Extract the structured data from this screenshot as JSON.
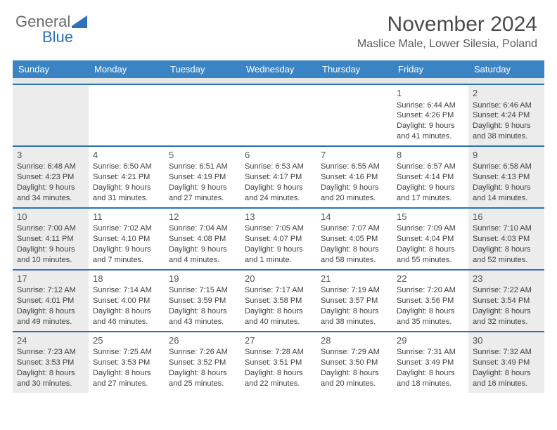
{
  "brand": {
    "text1": "General",
    "text2": "Blue"
  },
  "title": "November 2024",
  "location": "Maslice Male, Lower Silesia, Poland",
  "colors": {
    "header_bg": "#3b84c4",
    "header_text": "#ffffff",
    "rule": "#2a73b8",
    "shade": "#ececec",
    "spacer": "#e4e6e8",
    "text": "#3f3f3f",
    "logo_gray": "#6b6b6b",
    "logo_blue": "#2a73b8"
  },
  "day_names": [
    "Sunday",
    "Monday",
    "Tuesday",
    "Wednesday",
    "Thursday",
    "Friday",
    "Saturday"
  ],
  "weeks": [
    [
      {
        "blank": true,
        "shaded": true
      },
      {
        "blank": true
      },
      {
        "blank": true
      },
      {
        "blank": true
      },
      {
        "blank": true
      },
      {
        "day": "1",
        "sunrise": "Sunrise: 6:44 AM",
        "sunset": "Sunset: 4:26 PM",
        "daylight1": "Daylight: 9 hours",
        "daylight2": "and 41 minutes."
      },
      {
        "day": "2",
        "sunrise": "Sunrise: 6:46 AM",
        "sunset": "Sunset: 4:24 PM",
        "daylight1": "Daylight: 9 hours",
        "daylight2": "and 38 minutes.",
        "shaded": true
      }
    ],
    [
      {
        "day": "3",
        "sunrise": "Sunrise: 6:48 AM",
        "sunset": "Sunset: 4:23 PM",
        "daylight1": "Daylight: 9 hours",
        "daylight2": "and 34 minutes.",
        "shaded": true
      },
      {
        "day": "4",
        "sunrise": "Sunrise: 6:50 AM",
        "sunset": "Sunset: 4:21 PM",
        "daylight1": "Daylight: 9 hours",
        "daylight2": "and 31 minutes."
      },
      {
        "day": "5",
        "sunrise": "Sunrise: 6:51 AM",
        "sunset": "Sunset: 4:19 PM",
        "daylight1": "Daylight: 9 hours",
        "daylight2": "and 27 minutes."
      },
      {
        "day": "6",
        "sunrise": "Sunrise: 6:53 AM",
        "sunset": "Sunset: 4:17 PM",
        "daylight1": "Daylight: 9 hours",
        "daylight2": "and 24 minutes."
      },
      {
        "day": "7",
        "sunrise": "Sunrise: 6:55 AM",
        "sunset": "Sunset: 4:16 PM",
        "daylight1": "Daylight: 9 hours",
        "daylight2": "and 20 minutes."
      },
      {
        "day": "8",
        "sunrise": "Sunrise: 6:57 AM",
        "sunset": "Sunset: 4:14 PM",
        "daylight1": "Daylight: 9 hours",
        "daylight2": "and 17 minutes."
      },
      {
        "day": "9",
        "sunrise": "Sunrise: 6:58 AM",
        "sunset": "Sunset: 4:13 PM",
        "daylight1": "Daylight: 9 hours",
        "daylight2": "and 14 minutes.",
        "shaded": true
      }
    ],
    [
      {
        "day": "10",
        "sunrise": "Sunrise: 7:00 AM",
        "sunset": "Sunset: 4:11 PM",
        "daylight1": "Daylight: 9 hours",
        "daylight2": "and 10 minutes.",
        "shaded": true
      },
      {
        "day": "11",
        "sunrise": "Sunrise: 7:02 AM",
        "sunset": "Sunset: 4:10 PM",
        "daylight1": "Daylight: 9 hours",
        "daylight2": "and 7 minutes."
      },
      {
        "day": "12",
        "sunrise": "Sunrise: 7:04 AM",
        "sunset": "Sunset: 4:08 PM",
        "daylight1": "Daylight: 9 hours",
        "daylight2": "and 4 minutes."
      },
      {
        "day": "13",
        "sunrise": "Sunrise: 7:05 AM",
        "sunset": "Sunset: 4:07 PM",
        "daylight1": "Daylight: 9 hours",
        "daylight2": "and 1 minute."
      },
      {
        "day": "14",
        "sunrise": "Sunrise: 7:07 AM",
        "sunset": "Sunset: 4:05 PM",
        "daylight1": "Daylight: 8 hours",
        "daylight2": "and 58 minutes."
      },
      {
        "day": "15",
        "sunrise": "Sunrise: 7:09 AM",
        "sunset": "Sunset: 4:04 PM",
        "daylight1": "Daylight: 8 hours",
        "daylight2": "and 55 minutes."
      },
      {
        "day": "16",
        "sunrise": "Sunrise: 7:10 AM",
        "sunset": "Sunset: 4:03 PM",
        "daylight1": "Daylight: 8 hours",
        "daylight2": "and 52 minutes.",
        "shaded": true
      }
    ],
    [
      {
        "day": "17",
        "sunrise": "Sunrise: 7:12 AM",
        "sunset": "Sunset: 4:01 PM",
        "daylight1": "Daylight: 8 hours",
        "daylight2": "and 49 minutes.",
        "shaded": true
      },
      {
        "day": "18",
        "sunrise": "Sunrise: 7:14 AM",
        "sunset": "Sunset: 4:00 PM",
        "daylight1": "Daylight: 8 hours",
        "daylight2": "and 46 minutes."
      },
      {
        "day": "19",
        "sunrise": "Sunrise: 7:15 AM",
        "sunset": "Sunset: 3:59 PM",
        "daylight1": "Daylight: 8 hours",
        "daylight2": "and 43 minutes."
      },
      {
        "day": "20",
        "sunrise": "Sunrise: 7:17 AM",
        "sunset": "Sunset: 3:58 PM",
        "daylight1": "Daylight: 8 hours",
        "daylight2": "and 40 minutes."
      },
      {
        "day": "21",
        "sunrise": "Sunrise: 7:19 AM",
        "sunset": "Sunset: 3:57 PM",
        "daylight1": "Daylight: 8 hours",
        "daylight2": "and 38 minutes."
      },
      {
        "day": "22",
        "sunrise": "Sunrise: 7:20 AM",
        "sunset": "Sunset: 3:56 PM",
        "daylight1": "Daylight: 8 hours",
        "daylight2": "and 35 minutes."
      },
      {
        "day": "23",
        "sunrise": "Sunrise: 7:22 AM",
        "sunset": "Sunset: 3:54 PM",
        "daylight1": "Daylight: 8 hours",
        "daylight2": "and 32 minutes.",
        "shaded": true
      }
    ],
    [
      {
        "day": "24",
        "sunrise": "Sunrise: 7:23 AM",
        "sunset": "Sunset: 3:53 PM",
        "daylight1": "Daylight: 8 hours",
        "daylight2": "and 30 minutes.",
        "shaded": true
      },
      {
        "day": "25",
        "sunrise": "Sunrise: 7:25 AM",
        "sunset": "Sunset: 3:53 PM",
        "daylight1": "Daylight: 8 hours",
        "daylight2": "and 27 minutes."
      },
      {
        "day": "26",
        "sunrise": "Sunrise: 7:26 AM",
        "sunset": "Sunset: 3:52 PM",
        "daylight1": "Daylight: 8 hours",
        "daylight2": "and 25 minutes."
      },
      {
        "day": "27",
        "sunrise": "Sunrise: 7:28 AM",
        "sunset": "Sunset: 3:51 PM",
        "daylight1": "Daylight: 8 hours",
        "daylight2": "and 22 minutes."
      },
      {
        "day": "28",
        "sunrise": "Sunrise: 7:29 AM",
        "sunset": "Sunset: 3:50 PM",
        "daylight1": "Daylight: 8 hours",
        "daylight2": "and 20 minutes."
      },
      {
        "day": "29",
        "sunrise": "Sunrise: 7:31 AM",
        "sunset": "Sunset: 3:49 PM",
        "daylight1": "Daylight: 8 hours",
        "daylight2": "and 18 minutes."
      },
      {
        "day": "30",
        "sunrise": "Sunrise: 7:32 AM",
        "sunset": "Sunset: 3:49 PM",
        "daylight1": "Daylight: 8 hours",
        "daylight2": "and 16 minutes.",
        "shaded": true
      }
    ]
  ]
}
